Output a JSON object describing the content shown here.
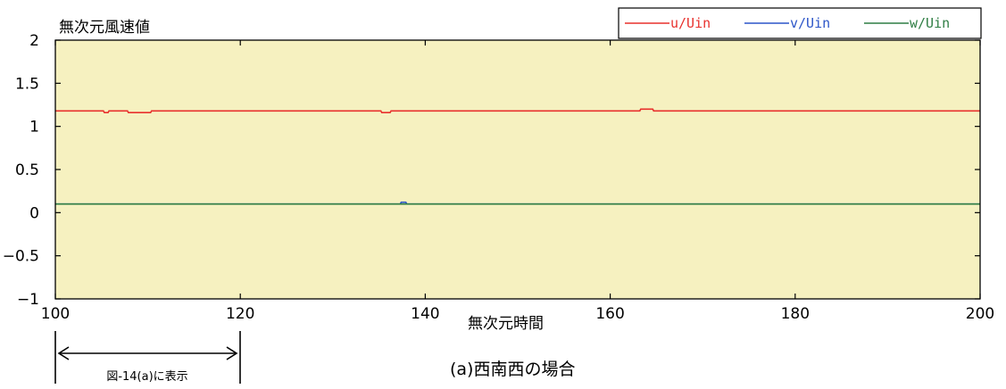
{
  "chart_data": {
    "type": "line",
    "ylabel": "無次元風速値",
    "xlabel": "無次元時間",
    "caption": "(a)西南西の場合",
    "xlim": [
      100,
      200
    ],
    "ylim": [
      -1,
      2
    ],
    "x_ticks": [
      100,
      120,
      140,
      160,
      180,
      200
    ],
    "y_ticks": [
      -1,
      -0.5,
      0,
      0.5,
      1,
      1.5,
      2
    ],
    "x_tick_labels": [
      "100",
      "120",
      "140",
      "160",
      "180",
      "200"
    ],
    "y_tick_labels": [
      "−1",
      "−0.5",
      "0",
      "0.5",
      "1",
      "1.5",
      "2"
    ],
    "legend_position": "top-right",
    "plot_background": "#f6f1c0",
    "series": [
      {
        "name": "u/Uin",
        "color": "#e8302c",
        "x": [
          100,
          105.2,
          105.3,
          105.7,
          105.8,
          107.8,
          107.9,
          110.3,
          110.4,
          135.2,
          135.3,
          136.2,
          136.3,
          163.2,
          163.3,
          164.6,
          164.7,
          200
        ],
        "y": [
          1.18,
          1.18,
          1.16,
          1.16,
          1.18,
          1.18,
          1.16,
          1.16,
          1.18,
          1.18,
          1.16,
          1.16,
          1.18,
          1.18,
          1.2,
          1.2,
          1.18,
          1.18
        ]
      },
      {
        "name": "v/Uin",
        "color": "#2c55c8",
        "x": [
          100,
          137.3,
          137.4,
          137.9,
          138.0,
          200
        ],
        "y": [
          0.1,
          0.1,
          0.12,
          0.12,
          0.1,
          0.1
        ]
      },
      {
        "name": "w/Uin",
        "color": "#2e7d43",
        "x": [
          100,
          200
        ],
        "y": [
          0.1,
          0.1
        ]
      }
    ],
    "range_annotation": {
      "from": 100,
      "to": 120,
      "label": "図-14(a)に表示"
    }
  }
}
